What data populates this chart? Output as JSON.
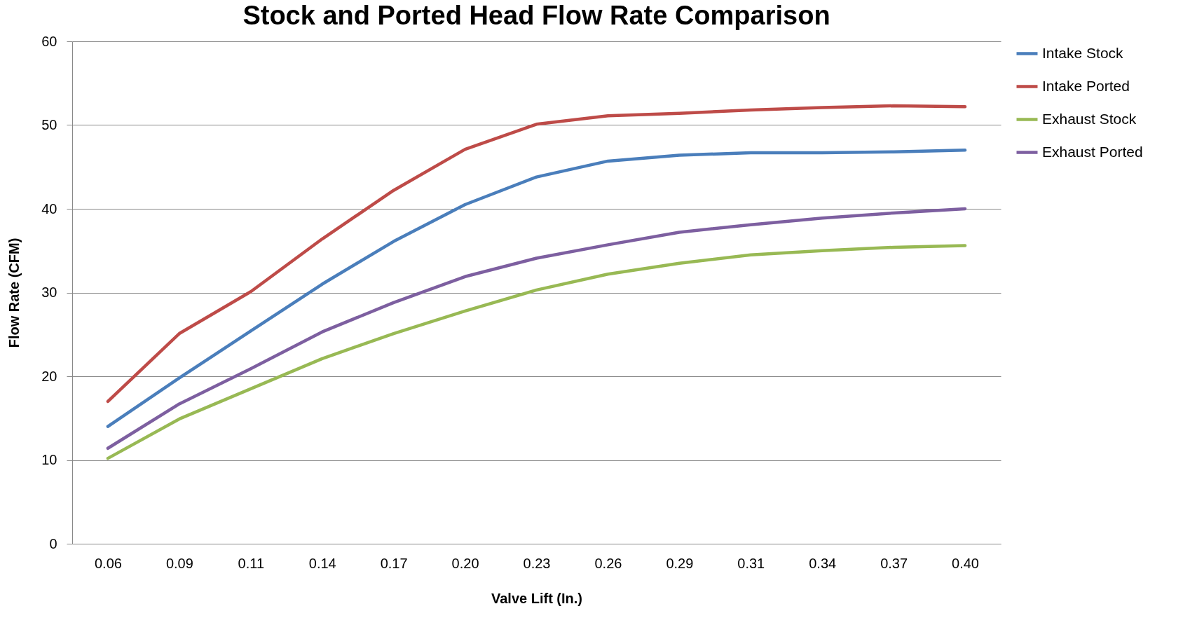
{
  "chart_data": {
    "type": "line",
    "title": "Stock and Ported Head Flow Rate Comparison",
    "xlabel": "Valve Lift (In.)",
    "ylabel": "Flow Rate (CFM)",
    "categories": [
      "0.06",
      "0.09",
      "0.11",
      "0.14",
      "0.17",
      "0.20",
      "0.23",
      "0.26",
      "0.29",
      "0.31",
      "0.34",
      "0.37",
      "0.40"
    ],
    "series": [
      {
        "name": "Intake Stock",
        "color": "#4a7ebb",
        "values": [
          14.0,
          19.8,
          25.4,
          31.0,
          36.1,
          40.5,
          43.8,
          45.7,
          46.4,
          46.7,
          46.7,
          46.8,
          47.0
        ]
      },
      {
        "name": "Intake Ported",
        "color": "#be4b48",
        "values": [
          17.0,
          25.1,
          30.1,
          36.4,
          42.2,
          47.1,
          50.1,
          51.1,
          51.4,
          51.8,
          52.1,
          52.3,
          52.2
        ]
      },
      {
        "name": "Exhaust Stock",
        "color": "#98b954",
        "values": [
          10.2,
          14.9,
          18.5,
          22.1,
          25.1,
          27.8,
          30.3,
          32.2,
          33.5,
          34.5,
          35.0,
          35.4,
          35.6
        ]
      },
      {
        "name": "Exhaust Ported",
        "color": "#7d5fa0",
        "values": [
          11.4,
          16.7,
          20.9,
          25.3,
          28.8,
          31.9,
          34.1,
          35.7,
          37.2,
          38.1,
          38.9,
          39.5,
          40.0
        ]
      }
    ],
    "ylim": [
      0,
      60
    ],
    "yticks": [
      0,
      10,
      20,
      30,
      40,
      50,
      60
    ],
    "grid": "y",
    "legend": "right",
    "marker": "none",
    "line_style": "solid"
  }
}
